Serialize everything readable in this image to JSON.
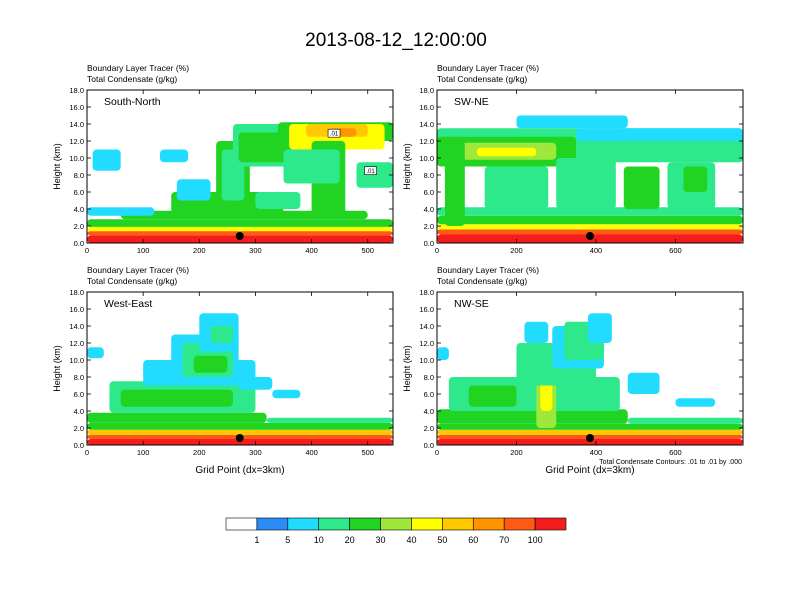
{
  "title": "2013-08-12_12:00:00",
  "footnote": "Total Condensate Contours: .01 to .01 by .000",
  "palette": {
    "levels": [
      1,
      5,
      10,
      20,
      30,
      40,
      50,
      60,
      70,
      100
    ],
    "colors": [
      "#ffffff",
      "#2c8cf5",
      "#22dcff",
      "#2ee88c",
      "#22d422",
      "#9ee83c",
      "#ffff00",
      "#ffc800",
      "#ff9400",
      "#ff5a14",
      "#f41c1c"
    ]
  },
  "chart_data": [
    {
      "type": "heatmap",
      "series_labels": [
        "Boundary Layer Tracer   (%)",
        "Total Condensate   (g/kg)"
      ],
      "panel_label": "South-North",
      "ylabel": "Height (km)",
      "xlabel": "",
      "ylim": [
        0,
        18
      ],
      "xlim": [
        0,
        545
      ],
      "yticks": [
        "0.0",
        "2.0",
        "4.0",
        "6.0",
        "8.0",
        "10.0",
        "12.0",
        "14.0",
        "16.0",
        "18.0"
      ],
      "xticks": [
        0,
        100,
        200,
        300,
        400,
        500
      ],
      "marker_x": 272,
      "contour_labels": [
        ".01",
        ".01"
      ],
      "blobs": [
        {
          "x": [
            0,
            545
          ],
          "y": [
            0,
            0.9
          ],
          "v": 100
        },
        {
          "x": [
            0,
            545
          ],
          "y": [
            0.9,
            1.4
          ],
          "v": 70
        },
        {
          "x": [
            0,
            545
          ],
          "y": [
            1.4,
            1.9
          ],
          "v": 40
        },
        {
          "x": [
            0,
            545
          ],
          "y": [
            1.9,
            2.8
          ],
          "v": 20
        },
        {
          "x": [
            60,
            500
          ],
          "y": [
            2.8,
            3.8
          ],
          "v": 20
        },
        {
          "x": [
            150,
            350
          ],
          "y": [
            3.5,
            6
          ],
          "v": 20
        },
        {
          "x": [
            230,
            290
          ],
          "y": [
            3,
            12
          ],
          "v": 20
        },
        {
          "x": [
            240,
            280
          ],
          "y": [
            5,
            11
          ],
          "v": 10
        },
        {
          "x": [
            260,
            400
          ],
          "y": [
            9,
            14
          ],
          "v": 10
        },
        {
          "x": [
            270,
            370
          ],
          "y": [
            9.5,
            13
          ],
          "v": 20
        },
        {
          "x": [
            340,
            545
          ],
          "y": [
            12,
            14.2
          ],
          "v": 20
        },
        {
          "x": [
            360,
            530
          ],
          "y": [
            11,
            14
          ],
          "v": 40
        },
        {
          "x": [
            390,
            500
          ],
          "y": [
            12.5,
            14
          ],
          "v": 50
        },
        {
          "x": [
            430,
            480
          ],
          "y": [
            12.5,
            13.5
          ],
          "v": 60
        },
        {
          "x": [
            400,
            460
          ],
          "y": [
            3,
            12
          ],
          "v": 20
        },
        {
          "x": [
            350,
            450
          ],
          "y": [
            7,
            11
          ],
          "v": 10
        },
        {
          "x": [
            130,
            180
          ],
          "y": [
            9.5,
            11
          ],
          "v": 5
        },
        {
          "x": [
            10,
            60
          ],
          "y": [
            8.5,
            11
          ],
          "v": 5
        },
        {
          "x": [
            160,
            220
          ],
          "y": [
            5,
            7.5
          ],
          "v": 5
        },
        {
          "x": [
            480,
            545
          ],
          "y": [
            6.5,
            9.5
          ],
          "v": 10
        },
        {
          "x": [
            0,
            120
          ],
          "y": [
            3.2,
            4.2
          ],
          "v": 5
        },
        {
          "x": [
            300,
            380
          ],
          "y": [
            4,
            6
          ],
          "v": 10
        }
      ]
    },
    {
      "type": "heatmap",
      "series_labels": [
        "Boundary Layer Tracer   (%)",
        "Total Condensate   (g/kg)"
      ],
      "panel_label": "SW-NE",
      "ylabel": "Height (km)",
      "xlabel": "",
      "ylim": [
        0,
        18
      ],
      "xlim": [
        0,
        770
      ],
      "yticks": [
        "0.0",
        "2.0",
        "4.0",
        "6.0",
        "8.0",
        "10.0",
        "12.0",
        "14.0",
        "16.0",
        "18.0"
      ],
      "xticks": [
        0,
        200,
        400,
        600
      ],
      "marker_x": 385,
      "blobs": [
        {
          "x": [
            0,
            770
          ],
          "y": [
            0,
            1.0
          ],
          "v": 100
        },
        {
          "x": [
            0,
            770
          ],
          "y": [
            1.0,
            1.6
          ],
          "v": 70
        },
        {
          "x": [
            0,
            770
          ],
          "y": [
            1.6,
            2.2
          ],
          "v": 40
        },
        {
          "x": [
            0,
            770
          ],
          "y": [
            2.2,
            3.2
          ],
          "v": 20
        },
        {
          "x": [
            0,
            770
          ],
          "y": [
            3.2,
            4.2
          ],
          "v": 10
        },
        {
          "x": [
            0,
            770
          ],
          "y": [
            9.5,
            13.5
          ],
          "v": 10
        },
        {
          "x": [
            0,
            350
          ],
          "y": [
            9,
            12.5
          ],
          "v": 20
        },
        {
          "x": [
            60,
            300
          ],
          "y": [
            9.8,
            11.8
          ],
          "v": 30
        },
        {
          "x": [
            100,
            250
          ],
          "y": [
            10.2,
            11.2
          ],
          "v": 40
        },
        {
          "x": [
            200,
            480
          ],
          "y": [
            13.5,
            15
          ],
          "v": 5
        },
        {
          "x": [
            350,
            770
          ],
          "y": [
            12,
            13.5
          ],
          "v": 5
        },
        {
          "x": [
            20,
            70
          ],
          "y": [
            2,
            12
          ],
          "v": 20
        },
        {
          "x": [
            120,
            280
          ],
          "y": [
            4,
            9
          ],
          "v": 10
        },
        {
          "x": [
            300,
            450
          ],
          "y": [
            4,
            10
          ],
          "v": 10
        },
        {
          "x": [
            470,
            560
          ],
          "y": [
            4,
            9
          ],
          "v": 20
        },
        {
          "x": [
            580,
            700
          ],
          "y": [
            4,
            9.5
          ],
          "v": 10
        },
        {
          "x": [
            620,
            680
          ],
          "y": [
            6,
            9
          ],
          "v": 20
        }
      ]
    },
    {
      "type": "heatmap",
      "series_labels": [
        "Boundary Layer Tracer   (%)",
        "Total Condensate   (g/kg)"
      ],
      "panel_label": "West-East",
      "ylabel": "Height (km)",
      "xlabel": "Grid Point (dx=3km)",
      "ylim": [
        0,
        18
      ],
      "xlim": [
        0,
        545
      ],
      "yticks": [
        "0.0",
        "2.0",
        "4.0",
        "6.0",
        "8.0",
        "10.0",
        "12.0",
        "14.0",
        "16.0",
        "18.0"
      ],
      "xticks": [
        0,
        100,
        200,
        300,
        400,
        500
      ],
      "marker_x": 272,
      "blobs": [
        {
          "x": [
            0,
            545
          ],
          "y": [
            0,
            0.7
          ],
          "v": 100
        },
        {
          "x": [
            0,
            545
          ],
          "y": [
            0.7,
            1.2
          ],
          "v": 70
        },
        {
          "x": [
            0,
            545
          ],
          "y": [
            1.2,
            1.8
          ],
          "v": 50
        },
        {
          "x": [
            0,
            545
          ],
          "y": [
            1.8,
            2.6
          ],
          "v": 20
        },
        {
          "x": [
            0,
            320
          ],
          "y": [
            2.6,
            3.8
          ],
          "v": 20
        },
        {
          "x": [
            320,
            545
          ],
          "y": [
            2.6,
            3.2
          ],
          "v": 10
        },
        {
          "x": [
            40,
            300
          ],
          "y": [
            3.8,
            7.5
          ],
          "v": 10
        },
        {
          "x": [
            60,
            260
          ],
          "y": [
            4.5,
            6.5
          ],
          "v": 20
        },
        {
          "x": [
            100,
            300
          ],
          "y": [
            7,
            10
          ],
          "v": 5
        },
        {
          "x": [
            150,
            270
          ],
          "y": [
            9,
            13
          ],
          "v": 5
        },
        {
          "x": [
            170,
            260
          ],
          "y": [
            8,
            12
          ],
          "v": 10
        },
        {
          "x": [
            190,
            250
          ],
          "y": [
            8.5,
            10.5
          ],
          "v": 20
        },
        {
          "x": [
            200,
            270
          ],
          "y": [
            11,
            15.5
          ],
          "v": 5
        },
        {
          "x": [
            220,
            260
          ],
          "y": [
            12,
            14
          ],
          "v": 10
        },
        {
          "x": [
            0,
            30
          ],
          "y": [
            10.2,
            11.5
          ],
          "v": 5
        },
        {
          "x": [
            270,
            330
          ],
          "y": [
            6.5,
            8
          ],
          "v": 5
        },
        {
          "x": [
            330,
            380
          ],
          "y": [
            5.5,
            6.5
          ],
          "v": 5
        }
      ]
    },
    {
      "type": "heatmap",
      "series_labels": [
        "Boundary Layer Tracer   (%)",
        "Total Condensate   (g/kg)"
      ],
      "panel_label": "NW-SE",
      "ylabel": "Height (km)",
      "xlabel": "Grid Point (dx=3km)",
      "ylim": [
        0,
        18
      ],
      "xlim": [
        0,
        770
      ],
      "yticks": [
        "0.0",
        "2.0",
        "4.0",
        "6.0",
        "8.0",
        "10.0",
        "12.0",
        "14.0",
        "16.0",
        "18.0"
      ],
      "xticks": [
        0,
        200,
        400,
        600
      ],
      "marker_x": 385,
      "blobs": [
        {
          "x": [
            0,
            770
          ],
          "y": [
            0,
            0.7
          ],
          "v": 100
        },
        {
          "x": [
            0,
            770
          ],
          "y": [
            0.7,
            1.2
          ],
          "v": 70
        },
        {
          "x": [
            0,
            770
          ],
          "y": [
            1.2,
            1.8
          ],
          "v": 50
        },
        {
          "x": [
            0,
            770
          ],
          "y": [
            1.8,
            2.5
          ],
          "v": 20
        },
        {
          "x": [
            0,
            480
          ],
          "y": [
            2.5,
            4.2
          ],
          "v": 20
        },
        {
          "x": [
            480,
            770
          ],
          "y": [
            2.5,
            3.2
          ],
          "v": 10
        },
        {
          "x": [
            30,
            460
          ],
          "y": [
            4,
            8
          ],
          "v": 10
        },
        {
          "x": [
            80,
            200
          ],
          "y": [
            4.5,
            7
          ],
          "v": 20
        },
        {
          "x": [
            250,
            300
          ],
          "y": [
            2,
            12
          ],
          "v": 30
        },
        {
          "x": [
            260,
            290
          ],
          "y": [
            4,
            10
          ],
          "v": 40
        },
        {
          "x": [
            200,
            400
          ],
          "y": [
            7,
            12
          ],
          "v": 10
        },
        {
          "x": [
            290,
            420
          ],
          "y": [
            9,
            14
          ],
          "v": 5
        },
        {
          "x": [
            320,
            420
          ],
          "y": [
            10,
            14.5
          ],
          "v": 10
        },
        {
          "x": [
            380,
            440
          ],
          "y": [
            12,
            15.5
          ],
          "v": 5
        },
        {
          "x": [
            220,
            280
          ],
          "y": [
            12,
            14.5
          ],
          "v": 5
        },
        {
          "x": [
            0,
            30
          ],
          "y": [
            10,
            11.5
          ],
          "v": 5
        },
        {
          "x": [
            480,
            560
          ],
          "y": [
            6,
            8.5
          ],
          "v": 5
        },
        {
          "x": [
            600,
            700
          ],
          "y": [
            4.5,
            5.5
          ],
          "v": 5
        }
      ]
    }
  ]
}
